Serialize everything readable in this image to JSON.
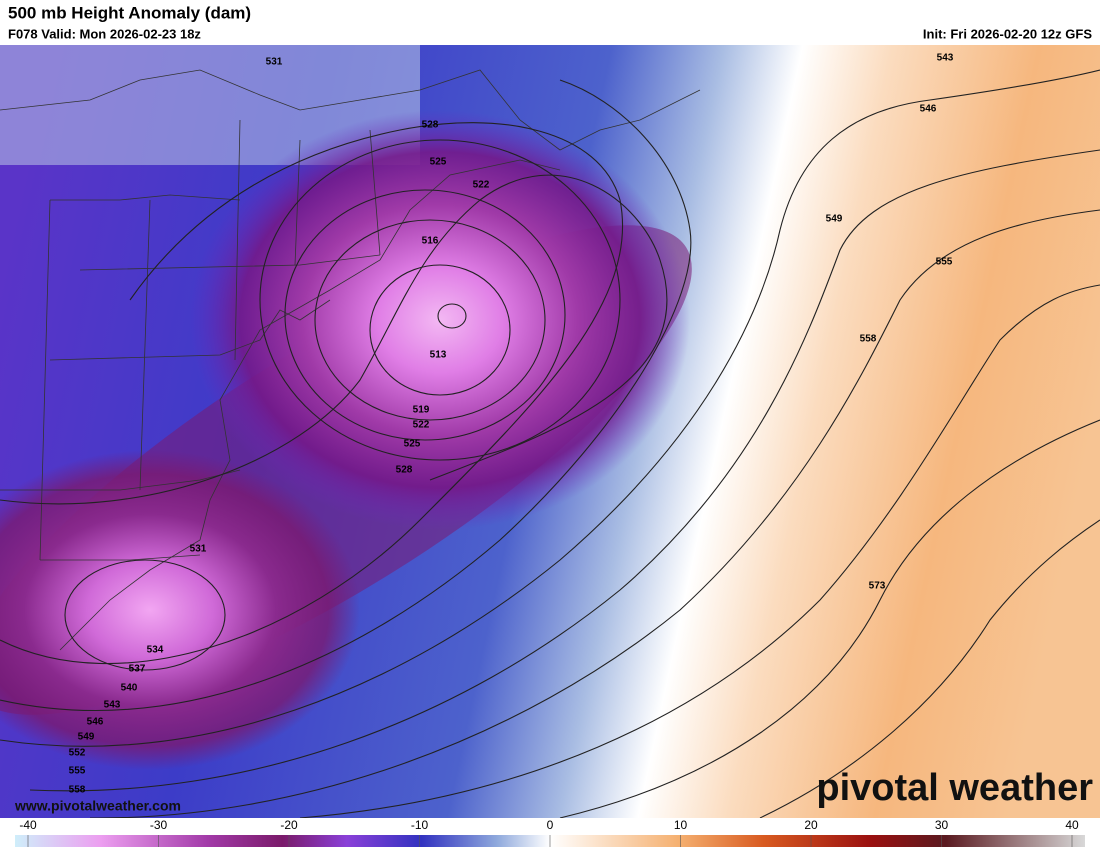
{
  "header": {
    "title": "500 mb Height Anomaly (dam)",
    "valid": "F078 Valid: Mon 2026-02-23 18z",
    "init": "Init: Fri 2026-02-20 12z GFS"
  },
  "contour_labels": [
    531,
    543,
    546,
    528,
    525,
    522,
    516,
    549,
    555,
    513,
    558,
    519,
    522,
    525,
    528,
    531,
    573,
    534,
    537,
    540,
    543,
    546,
    549,
    552,
    555,
    558
  ],
  "colorbar": {
    "lim": [
      -40,
      40
    ],
    "ticks": [
      -40,
      -30,
      -20,
      -10,
      0,
      10,
      20,
      30,
      40
    ]
  },
  "watermark": "pivotal weather",
  "url": "www.pivotalweather.com"
}
